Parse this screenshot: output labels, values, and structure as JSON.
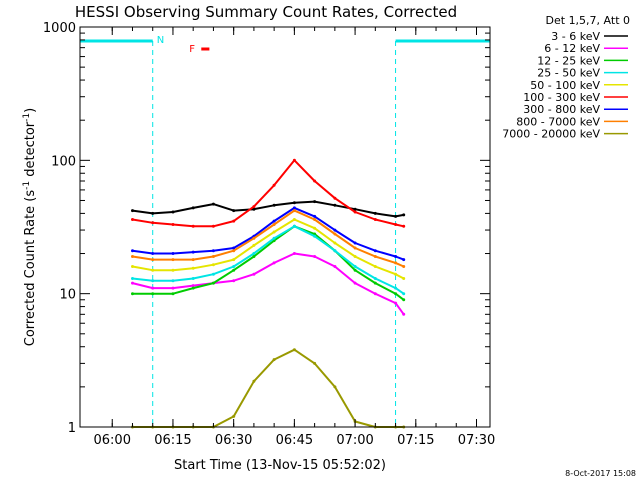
{
  "chart_data": {
    "type": "line",
    "title": "HESSI Observing Summary Count Rates, Corrected",
    "xlabel": "Start Time (13-Nov-15 05:52:02)",
    "ylabel_parts": [
      "Corrected Count Rate (s",
      "-1",
      " detector",
      "-1",
      ")"
    ],
    "y_scale": "log",
    "ylim": [
      1,
      1000
    ],
    "xlim": [
      "05:52:02",
      "07:33:20"
    ],
    "x_ticks": [
      "06:00",
      "06:15",
      "06:30",
      "06:45",
      "07:00",
      "07:15",
      "07:30"
    ],
    "y_ticks": [
      "1",
      "10",
      "100",
      "1000"
    ],
    "grid": false,
    "legend_title": "Det 1,5,7, Att 0",
    "legend_position": "top-right-outside",
    "series": [
      {
        "name": "3 - 6 keV",
        "color": "#000000",
        "x": [
          "06:05",
          "06:10",
          "06:15",
          "06:20",
          "06:25",
          "06:30",
          "06:35",
          "06:40",
          "06:45",
          "06:50",
          "06:55",
          "07:00",
          "07:05",
          "07:10",
          "07:12"
        ],
        "y": [
          42,
          40,
          41,
          44,
          47,
          42,
          43,
          46,
          48,
          49,
          46,
          43,
          40,
          38,
          39
        ]
      },
      {
        "name": "6 - 12 keV",
        "color": "#ff00ff",
        "x": [
          "06:05",
          "06:10",
          "06:15",
          "06:20",
          "06:25",
          "06:30",
          "06:35",
          "06:40",
          "06:45",
          "06:50",
          "06:55",
          "07:00",
          "07:05",
          "07:10",
          "07:12"
        ],
        "y": [
          12,
          11,
          11,
          11.5,
          12,
          12.5,
          14,
          17,
          20,
          19,
          16,
          12,
          10,
          8.5,
          7
        ]
      },
      {
        "name": "12 - 25 keV",
        "color": "#00cc00",
        "x": [
          "06:05",
          "06:10",
          "06:15",
          "06:20",
          "06:25",
          "06:30",
          "06:35",
          "06:40",
          "06:45",
          "06:50",
          "06:55",
          "07:00",
          "07:05",
          "07:10",
          "07:12"
        ],
        "y": [
          10,
          10,
          10,
          11,
          12,
          15,
          19,
          25,
          32,
          28,
          21,
          15,
          12,
          10,
          9
        ]
      },
      {
        "name": "25 - 50 keV",
        "color": "#00e5e5",
        "x": [
          "06:05",
          "06:10",
          "06:15",
          "06:20",
          "06:25",
          "06:30",
          "06:35",
          "06:40",
          "06:45",
          "06:50",
          "06:55",
          "07:00",
          "07:05",
          "07:10",
          "07:12"
        ],
        "y": [
          13,
          12.5,
          12.5,
          13,
          14,
          16,
          20,
          26,
          32,
          27,
          21,
          16,
          13,
          11,
          10
        ]
      },
      {
        "name": "50 - 100 keV",
        "color": "#e5e500",
        "x": [
          "06:05",
          "06:10",
          "06:15",
          "06:20",
          "06:25",
          "06:30",
          "06:35",
          "06:40",
          "06:45",
          "06:50",
          "06:55",
          "07:00",
          "07:05",
          "07:10",
          "07:12"
        ],
        "y": [
          16,
          15,
          15,
          15.5,
          16.5,
          18,
          23,
          29,
          36,
          31,
          24,
          19,
          16,
          14,
          13
        ]
      },
      {
        "name": "100 - 300 keV",
        "color": "#ff0000",
        "x": [
          "06:05",
          "06:10",
          "06:15",
          "06:20",
          "06:25",
          "06:30",
          "06:35",
          "06:40",
          "06:45",
          "06:50",
          "06:55",
          "07:00",
          "07:05",
          "07:10",
          "07:12"
        ],
        "y": [
          36,
          34,
          33,
          32,
          32,
          35,
          45,
          65,
          100,
          70,
          52,
          41,
          36,
          33,
          32
        ]
      },
      {
        "name": "300 - 800 keV",
        "color": "#0000ff",
        "x": [
          "06:05",
          "06:10",
          "06:15",
          "06:20",
          "06:25",
          "06:30",
          "06:35",
          "06:40",
          "06:45",
          "06:50",
          "06:55",
          "07:00",
          "07:05",
          "07:10",
          "07:12"
        ],
        "y": [
          21,
          20,
          20,
          20.5,
          21,
          22,
          27,
          35,
          44,
          38,
          30,
          24,
          21,
          19,
          18
        ]
      },
      {
        "name": "800 - 7000 keV",
        "color": "#ff7f00",
        "x": [
          "06:05",
          "06:10",
          "06:15",
          "06:20",
          "06:25",
          "06:30",
          "06:35",
          "06:40",
          "06:45",
          "06:50",
          "06:55",
          "07:00",
          "07:05",
          "07:10",
          "07:12"
        ],
        "y": [
          19,
          18,
          18,
          18,
          19,
          21,
          26,
          33,
          42,
          36,
          28,
          22,
          19,
          17,
          16
        ]
      },
      {
        "name": "7000 - 20000 keV",
        "color": "#999900",
        "x": [
          "06:05",
          "06:10",
          "06:15",
          "06:20",
          "06:25",
          "06:30",
          "06:35",
          "06:40",
          "06:45",
          "06:50",
          "06:55",
          "07:00",
          "07:05",
          "07:10",
          "07:12"
        ],
        "y": [
          1,
          1,
          1,
          1,
          1,
          1.2,
          2.2,
          3.2,
          3.8,
          3,
          2,
          1.1,
          1,
          1,
          1
        ]
      }
    ],
    "annotations": [
      {
        "text": "N",
        "color": "#00e5e5"
      },
      {
        "text": "F",
        "color": "#ff0000"
      }
    ],
    "night_intervals": [
      [
        "05:52:02",
        "06:10"
      ],
      [
        "07:10",
        "07:33:20"
      ]
    ],
    "flare_marker": {
      "text": "F",
      "start": "06:22",
      "end": "06:24"
    },
    "timestamp": "8-Oct-2017 15:08"
  }
}
